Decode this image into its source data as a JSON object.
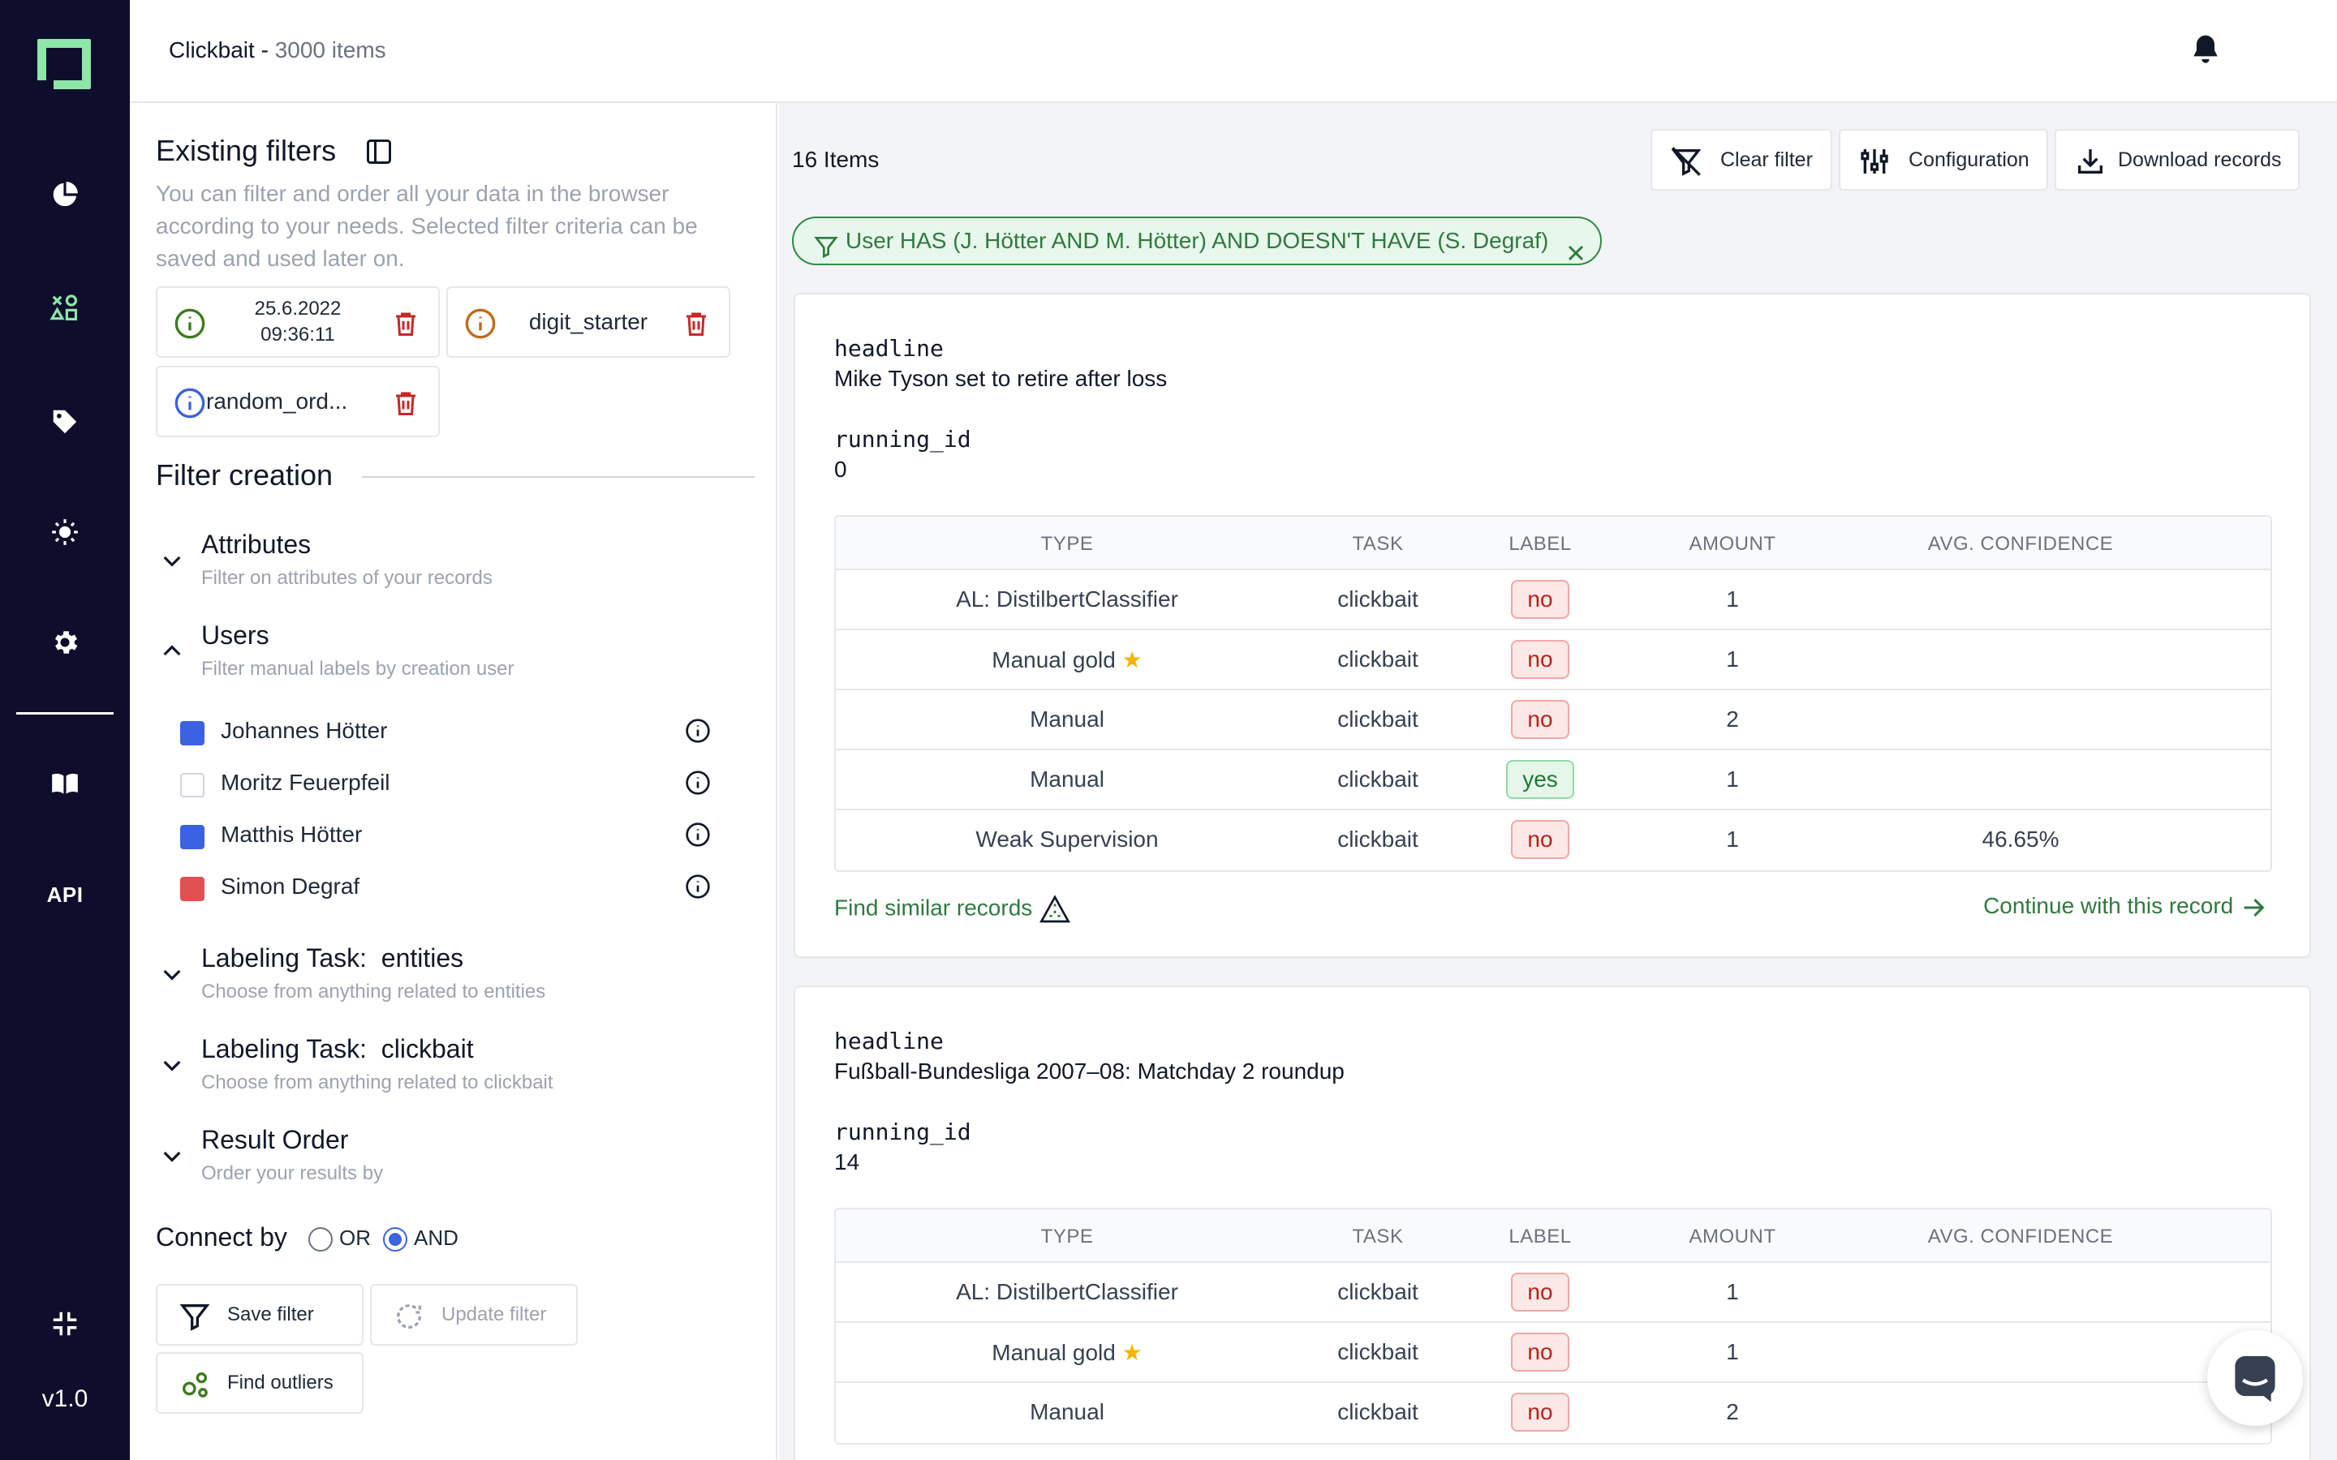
{
  "app": {
    "title": "Clickbait",
    "title_sep": " - ",
    "item_count": "3000 items",
    "version": "v1.0",
    "api_label": "API"
  },
  "panel": {
    "existing_filters_title": "Existing filters",
    "description": "You can filter and order all your data in the browser according to your needs. Selected filter criteria can be saved and used later on.",
    "saved_filters": [
      {
        "label_line1": "25.6.2022",
        "label_line2": "09:36:11",
        "icon_color": "#3d7a1f"
      },
      {
        "label": "digit_starter",
        "icon_color": "#c06a16"
      },
      {
        "label": "random_ord...",
        "icon_color": "#3b62e0"
      }
    ],
    "filter_creation_title": "Filter creation",
    "sections": {
      "attributes": {
        "title": "Attributes",
        "subtitle": "Filter on attributes of your records"
      },
      "users": {
        "title": "Users",
        "subtitle": "Filter manual labels by creation user"
      },
      "entities": {
        "title": "Labeling Task:  entities",
        "subtitle": "Choose from anything related to entities"
      },
      "clickbait": {
        "title": "Labeling Task:  clickbait",
        "subtitle": "Choose from anything related to clickbait"
      },
      "order": {
        "title": "Result Order",
        "subtitle": "Order your results by"
      }
    },
    "users": [
      {
        "name": "Johannes Hötter",
        "state": "include"
      },
      {
        "name": "Moritz Feuerpfeil",
        "state": "none"
      },
      {
        "name": "Matthis Hötter",
        "state": "include"
      },
      {
        "name": "Simon Degraf",
        "state": "exclude"
      }
    ],
    "connect_by": "Connect by",
    "connect_or": "OR",
    "connect_and": "AND",
    "connect_selected": "AND",
    "buttons": {
      "save_filter": "Save filter",
      "update_filter": "Update filter",
      "find_outliers": "Find outliers"
    }
  },
  "main": {
    "items_count": "16 Items",
    "toolbar": {
      "clear_filter": "Clear filter",
      "configuration": "Configuration",
      "download_records": "Download records"
    },
    "active_filter": "User HAS (J. Hötter AND M. Hötter) AND DOESN'T HAVE (S. Degraf)",
    "table_headers": {
      "type": "TYPE",
      "task": "TASK",
      "label": "LABEL",
      "amount": "AMOUNT",
      "confidence": "AVG. CONFIDENCE"
    },
    "records": [
      {
        "field1_name": "headline",
        "field1_value": "Mike Tyson set to retire after loss",
        "field2_name": "running_id",
        "field2_value": "0",
        "rows": [
          {
            "type": "AL: DistilbertClassifier",
            "task": "clickbait",
            "label": "no",
            "amount": "1",
            "confidence": ""
          },
          {
            "type": "Manual gold",
            "task": "clickbait",
            "label": "no",
            "amount": "1",
            "confidence": ""
          },
          {
            "type": "Manual",
            "task": "clickbait",
            "label": "no",
            "amount": "2",
            "confidence": ""
          },
          {
            "type": "Manual",
            "task": "clickbait",
            "label": "yes",
            "amount": "1",
            "confidence": ""
          },
          {
            "type": "Weak Supervision",
            "task": "clickbait",
            "label": "no",
            "amount": "1",
            "confidence": "46.65%"
          }
        ],
        "find_similar": "Find similar records",
        "continue": "Continue with this record"
      },
      {
        "field1_name": "headline",
        "field1_value": "Fußball-Bundesliga 2007–08: Matchday 2 roundup",
        "field2_name": "running_id",
        "field2_value": "14",
        "rows": [
          {
            "type": "AL: DistilbertClassifier",
            "task": "clickbait",
            "label": "no",
            "amount": "1",
            "confidence": ""
          },
          {
            "type": "Manual gold",
            "task": "clickbait",
            "label": "no",
            "amount": "1",
            "confidence": ""
          },
          {
            "type": "Manual",
            "task": "clickbait",
            "label": "no",
            "amount": "2",
            "confidence": ""
          }
        ]
      }
    ]
  },
  "colors": {
    "nav_bg": "#0e0e2c",
    "accent_green": "#2f7a3f",
    "logo_green": "#8ee6a8",
    "include_blue": "#3b62e0",
    "exclude_red": "#e05252"
  },
  "icons": [
    "logo-icon",
    "pie-chart-icon",
    "shapes-icon",
    "tag-icon",
    "lightbulb-icon",
    "gear-icon",
    "book-icon",
    "collapse-icon",
    "bell-icon",
    "avatar",
    "sidebar-toggle-icon",
    "info-icon",
    "trash-icon",
    "chevron-down-icon",
    "chevron-up-icon",
    "filter-icon",
    "filter-off-icon",
    "sliders-icon",
    "download-icon",
    "close-icon",
    "star-icon",
    "similar-icon",
    "arrow-right-icon",
    "outliers-icon",
    "refresh-icon",
    "chat-icon"
  ]
}
